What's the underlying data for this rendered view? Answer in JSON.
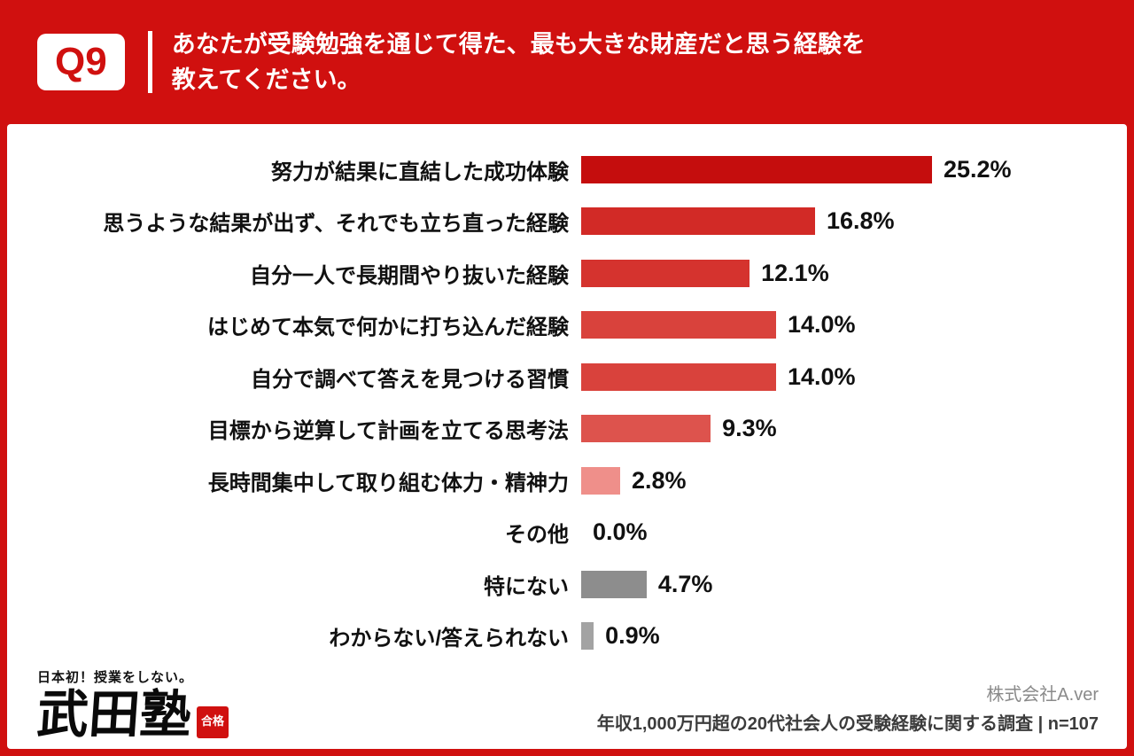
{
  "header": {
    "q_label": "Q9",
    "question_line1": "あなたが受験勉強を通じて得た、最も大きな財産だと思う経験を",
    "question_line2": "教えてください。"
  },
  "chart_data": {
    "type": "bar",
    "orientation": "horizontal",
    "title": "あなたが受験勉強を通じて得た、最も大きな財産だと思う経験を教えてください。",
    "categories": [
      "努力が結果に直結した成功体験",
      "思うような結果が出ず、それでも立ち直った経験",
      "自分一人で長期間やり抜いた経験",
      "はじめて本気で何かに打ち込んだ経験",
      "自分で調べて答えを見つける習慣",
      "目標から逆算して計画を立てる思考法",
      "長時間集中して取り組む体力・精神力",
      "その他",
      "特にない",
      "わからない/答えられない"
    ],
    "values": [
      25.2,
      16.8,
      12.1,
      14.0,
      14.0,
      9.3,
      2.8,
      0.0,
      4.7,
      0.9
    ],
    "value_labels": [
      "25.2%",
      "16.8%",
      "12.1%",
      "14.0%",
      "14.0%",
      "9.3%",
      "2.8%",
      "0.0%",
      "4.7%",
      "0.9%"
    ],
    "bar_colors": [
      "#c50d0d",
      "#d22a26",
      "#d5332e",
      "#d9423c",
      "#d9423c",
      "#dd534d",
      "#ef8f8a",
      null,
      "#8d8d8d",
      "#a3a3a3"
    ],
    "xlim": [
      0,
      28
    ],
    "xlabel": "",
    "ylabel": "",
    "grid": false,
    "legend": "none"
  },
  "footer": {
    "tagline": "日本初！授業をしない。",
    "logo_text": "武田塾",
    "seal_text": "合格",
    "company": "株式会社A.ver",
    "source": "年収1,000万円超の20代社会人の受験経験に関する調査 | n=107"
  },
  "colors": {
    "background_red": "#d0100f",
    "panel_white": "#ffffff",
    "text_black": "#111111",
    "gray_bar": "#8d8d8d"
  }
}
